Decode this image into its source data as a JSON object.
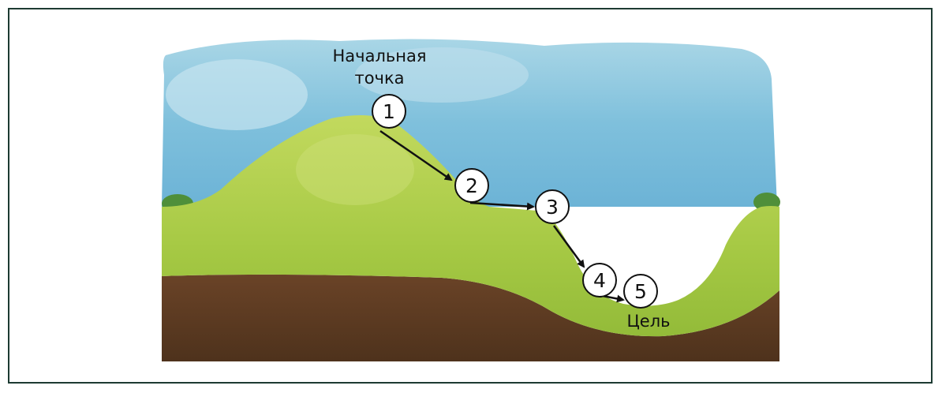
{
  "labels": {
    "start_line1": "Начальная",
    "start_line2": "точка",
    "goal": "Цель"
  },
  "steps": [
    {
      "number": "1"
    },
    {
      "number": "2"
    },
    {
      "number": "3"
    },
    {
      "number": "4"
    },
    {
      "number": "5"
    }
  ],
  "colors": {
    "sky": "#8fcbe0",
    "grass_light": "#b7d152",
    "grass": "#9bc23f",
    "soil": "#5e3b22",
    "frame": "#1d3b32",
    "arrow": "#111111"
  }
}
